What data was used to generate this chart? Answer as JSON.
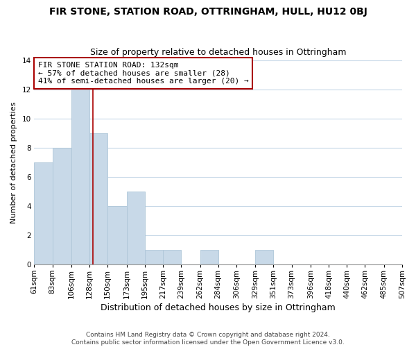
{
  "title": "FIR STONE, STATION ROAD, OTTRINGHAM, HULL, HU12 0BJ",
  "subtitle": "Size of property relative to detached houses in Ottringham",
  "xlabel": "Distribution of detached houses by size in Ottringham",
  "ylabel": "Number of detached properties",
  "bin_edges": [
    61,
    83,
    106,
    128,
    150,
    173,
    195,
    217,
    239,
    262,
    284,
    306,
    329,
    351,
    373,
    396,
    418,
    440,
    462,
    485,
    507
  ],
  "bin_labels": [
    "61sqm",
    "83sqm",
    "106sqm",
    "128sqm",
    "150sqm",
    "173sqm",
    "195sqm",
    "217sqm",
    "239sqm",
    "262sqm",
    "284sqm",
    "306sqm",
    "329sqm",
    "351sqm",
    "373sqm",
    "396sqm",
    "418sqm",
    "440sqm",
    "462sqm",
    "485sqm",
    "507sqm"
  ],
  "counts": [
    7,
    8,
    12,
    9,
    4,
    5,
    1,
    1,
    0,
    1,
    0,
    0,
    1,
    0,
    0,
    0,
    0,
    0,
    0,
    0
  ],
  "bar_color": "#c8d9e8",
  "bar_edge_color": "#aec6d8",
  "grid_color": "#c8d9e8",
  "reference_line_x": 132,
  "reference_line_color": "#aa0000",
  "annotation_text": "FIR STONE STATION ROAD: 132sqm\n← 57% of detached houses are smaller (28)\n41% of semi-detached houses are larger (20) →",
  "annotation_box_edge_color": "#aa0000",
  "ylim": [
    0,
    14
  ],
  "yticks": [
    0,
    2,
    4,
    6,
    8,
    10,
    12,
    14
  ],
  "footer_text": "Contains HM Land Registry data © Crown copyright and database right 2024.\nContains public sector information licensed under the Open Government Licence v3.0.",
  "title_fontsize": 10,
  "subtitle_fontsize": 9,
  "xlabel_fontsize": 9,
  "ylabel_fontsize": 8,
  "tick_fontsize": 7.5,
  "annotation_fontsize": 8,
  "footer_fontsize": 6.5
}
